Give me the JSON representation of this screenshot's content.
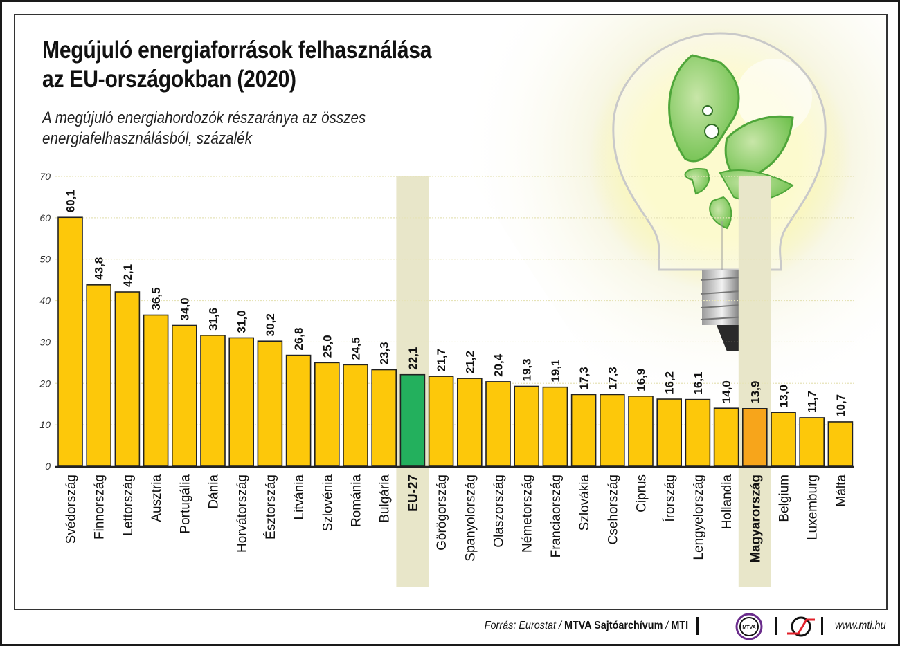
{
  "header": {
    "title_line1": "Megújuló energiaforrások felhasználása",
    "title_line2": "az EU-országokban (2020)",
    "subtitle_line1": "A megújuló energiahordozók részaránya az összes",
    "subtitle_line2": "energiafelhasználásból, százalék"
  },
  "footer": {
    "source_prefix": "Forrás: Eurostat / ",
    "source_bold": "MTVA Sajtóarchívum",
    "source_sep": " / ",
    "source_mti": "MTI",
    "mtva_logo_text": "MTVA",
    "url": "www.mti.hu"
  },
  "colors": {
    "bar_default": "#fdc80a",
    "bar_eu": "#23b05d",
    "bar_hungary": "#f7a51b",
    "highlight_column": "#e8e6c9",
    "mtva_ring": "#6a2c8c",
    "mti_red": "#e2202a"
  },
  "chart_data": {
    "type": "bar",
    "title": "Megújuló energiaforrások felhasználása az EU-országokban (2020)",
    "subtitle": "A megújuló energiahordozók részaránya az összes energiafelhasználásból, százalék",
    "xlabel": "",
    "ylabel": "",
    "ylim": [
      0,
      70
    ],
    "yticks": [
      0,
      10,
      20,
      30,
      40,
      50,
      60,
      70
    ],
    "grid": true,
    "categories": [
      "Svédország",
      "Finnország",
      "Lettország",
      "Ausztria",
      "Portugália",
      "Dánia",
      "Horvátország",
      "Észtország",
      "Litvánia",
      "Szlovénia",
      "Románia",
      "Bulgária",
      "EU-27",
      "Görögország",
      "Spanyolország",
      "Olaszország",
      "Németország",
      "Franciaország",
      "Szlovákia",
      "Csehország",
      "Ciprus",
      "Írország",
      "Lengyelország",
      "Hollandia",
      "Magyarország",
      "Belgium",
      "Luxemburg",
      "Málta"
    ],
    "values": [
      60.1,
      43.8,
      42.1,
      36.5,
      34.0,
      31.6,
      31.0,
      30.2,
      26.8,
      25.0,
      24.5,
      23.3,
      22.1,
      21.7,
      21.2,
      20.4,
      19.3,
      19.1,
      17.3,
      17.3,
      16.9,
      16.2,
      16.1,
      14.0,
      13.9,
      13.0,
      11.7,
      10.7
    ],
    "value_labels": [
      "60,1",
      "43,8",
      "42,1",
      "36,5",
      "34,0",
      "31,6",
      "31,0",
      "30,2",
      "26,8",
      "25,0",
      "24,5",
      "23,3",
      "22,1",
      "21,7",
      "21,2",
      "20,4",
      "19,3",
      "19,1",
      "17,3",
      "17,3",
      "16,9",
      "16,2",
      "16,1",
      "14,0",
      "13,9",
      "13,0",
      "11,7",
      "10,7"
    ],
    "highlighted": {
      "EU-27": "eu",
      "Magyarország": "hungary"
    }
  }
}
